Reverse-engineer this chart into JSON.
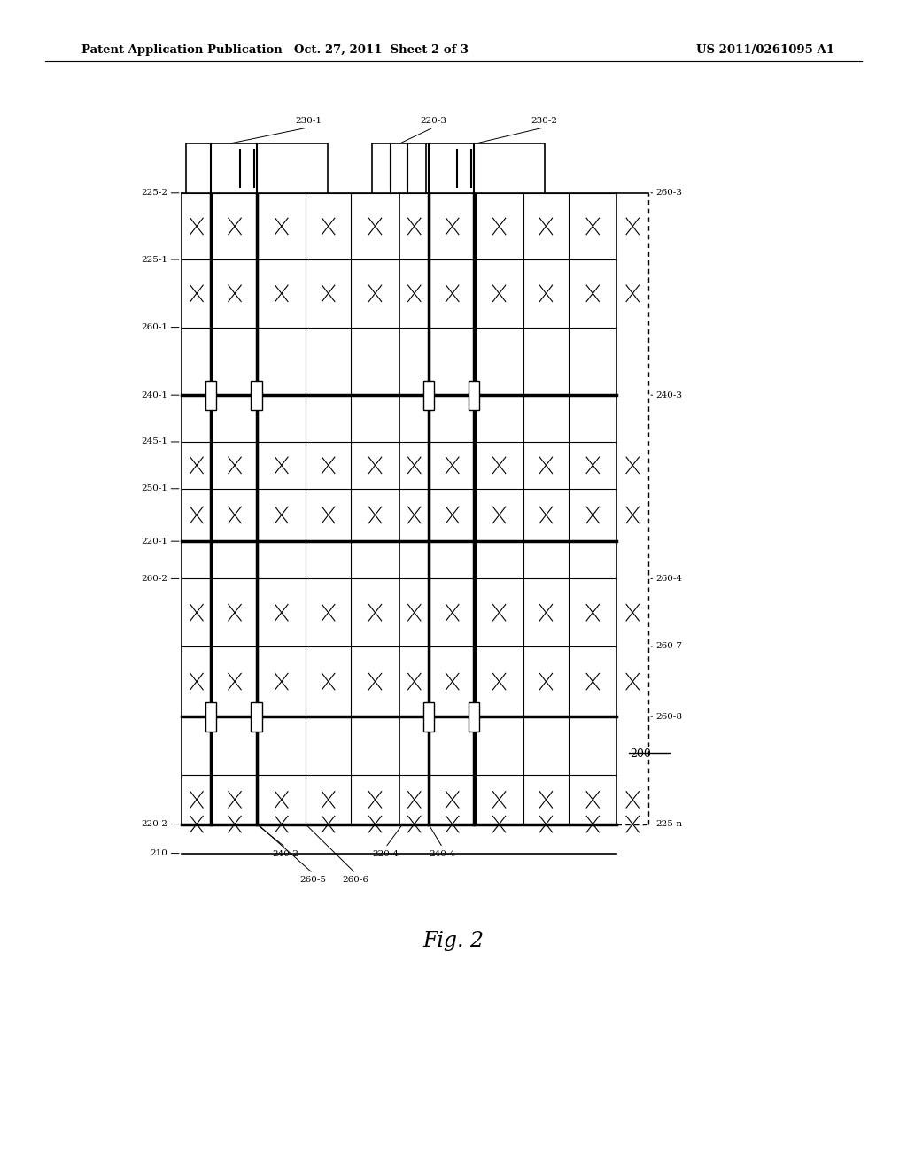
{
  "bg_color": "#ffffff",
  "header_left": "Patent Application Publication",
  "header_mid": "Oct. 27, 2011  Sheet 2 of 3",
  "header_right": "US 2011/0261095 A1",
  "fig_label": "Fig. 2",
  "fig_number": "200"
}
